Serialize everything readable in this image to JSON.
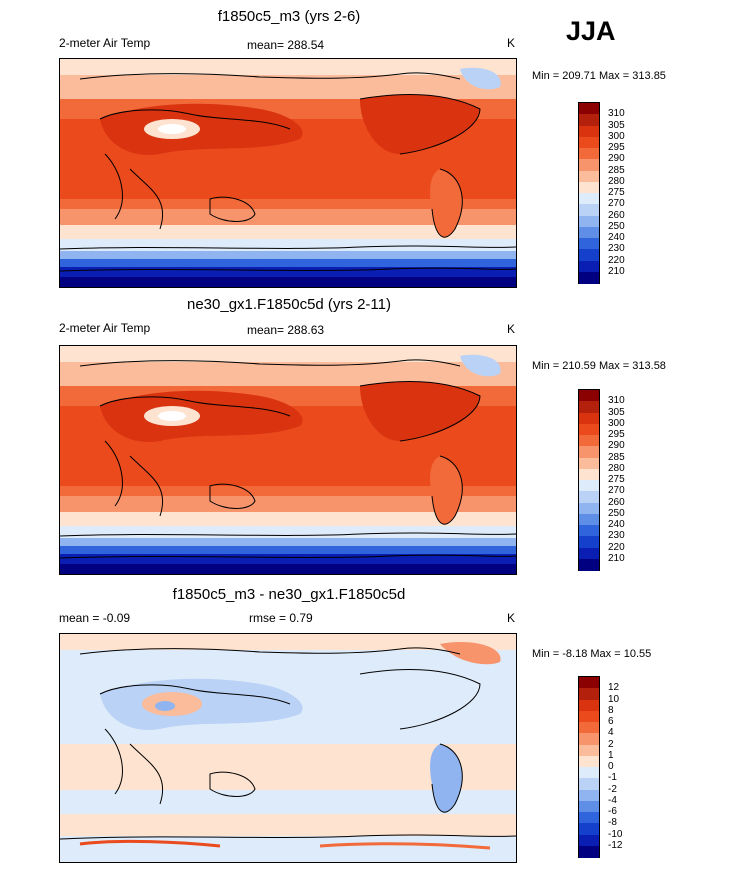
{
  "season": "JJA",
  "panels": [
    {
      "title": "f1850c5_m3 (yrs 2-6)",
      "left_label": "2-meter Air Temp",
      "center_label": "mean= 288.54",
      "units": "K",
      "minmax": "Min = 209.71 Max = 313.85"
    },
    {
      "title": "ne30_gx1.F1850c5d (yrs 2-11)",
      "left_label": "2-meter Air Temp",
      "center_label": "mean= 288.63",
      "units": "K",
      "minmax": "Min = 210.59 Max = 313.58"
    },
    {
      "title": "f1850c5_m3 - ne30_gx1.F1850c5d",
      "left_label": "mean =  -0.09",
      "center_label": "rmse =   0.79",
      "units": "K",
      "minmax": "Min =  -8.18 Max =  10.55"
    }
  ],
  "chart_data": [
    {
      "type": "heatmap",
      "title": "f1850c5_m3 (yrs 2-6)",
      "variable": "2-meter Air Temp",
      "units": "K",
      "mean": 288.54,
      "min": 209.71,
      "max": 313.85,
      "colorbar_levels": [
        310,
        305,
        300,
        295,
        290,
        285,
        280,
        275,
        270,
        260,
        250,
        240,
        230,
        220,
        210
      ],
      "colorbar_colors": [
        "#8b0000",
        "#b3200c",
        "#d93310",
        "#ea4a1c",
        "#f26a3a",
        "#f7946c",
        "#fbbc9c",
        "#fde3d0",
        "#deebfa",
        "#b9d2f5",
        "#8fb4ef",
        "#5f8ee6",
        "#3064dc",
        "#1440cc",
        "#0a1eb4",
        "#000080"
      ]
    },
    {
      "type": "heatmap",
      "title": "ne30_gx1.F1850c5d (yrs 2-11)",
      "variable": "2-meter Air Temp",
      "units": "K",
      "mean": 288.63,
      "min": 210.59,
      "max": 313.58,
      "colorbar_levels": [
        310,
        305,
        300,
        295,
        290,
        285,
        280,
        275,
        270,
        260,
        250,
        240,
        230,
        220,
        210
      ],
      "colorbar_colors": [
        "#8b0000",
        "#b3200c",
        "#d93310",
        "#ea4a1c",
        "#f26a3a",
        "#f7946c",
        "#fbbc9c",
        "#fde3d0",
        "#deebfa",
        "#b9d2f5",
        "#8fb4ef",
        "#5f8ee6",
        "#3064dc",
        "#1440cc",
        "#0a1eb4",
        "#000080"
      ]
    },
    {
      "type": "heatmap",
      "title": "f1850c5_m3 - ne30_gx1.F1850c5d",
      "units": "K",
      "mean": -0.09,
      "rmse": 0.79,
      "min": -8.18,
      "max": 10.55,
      "colorbar_levels": [
        12,
        10,
        8,
        6,
        4,
        2,
        1,
        0,
        -1,
        -2,
        -4,
        -6,
        -8,
        -10,
        -12
      ],
      "colorbar_colors": [
        "#8b0000",
        "#b3200c",
        "#d93310",
        "#ea4a1c",
        "#f26a3a",
        "#f7946c",
        "#fbbc9c",
        "#fde3d0",
        "#deebfa",
        "#b9d2f5",
        "#8fb4ef",
        "#5f8ee6",
        "#3064dc",
        "#1440cc",
        "#0a1eb4",
        "#000080"
      ]
    }
  ]
}
